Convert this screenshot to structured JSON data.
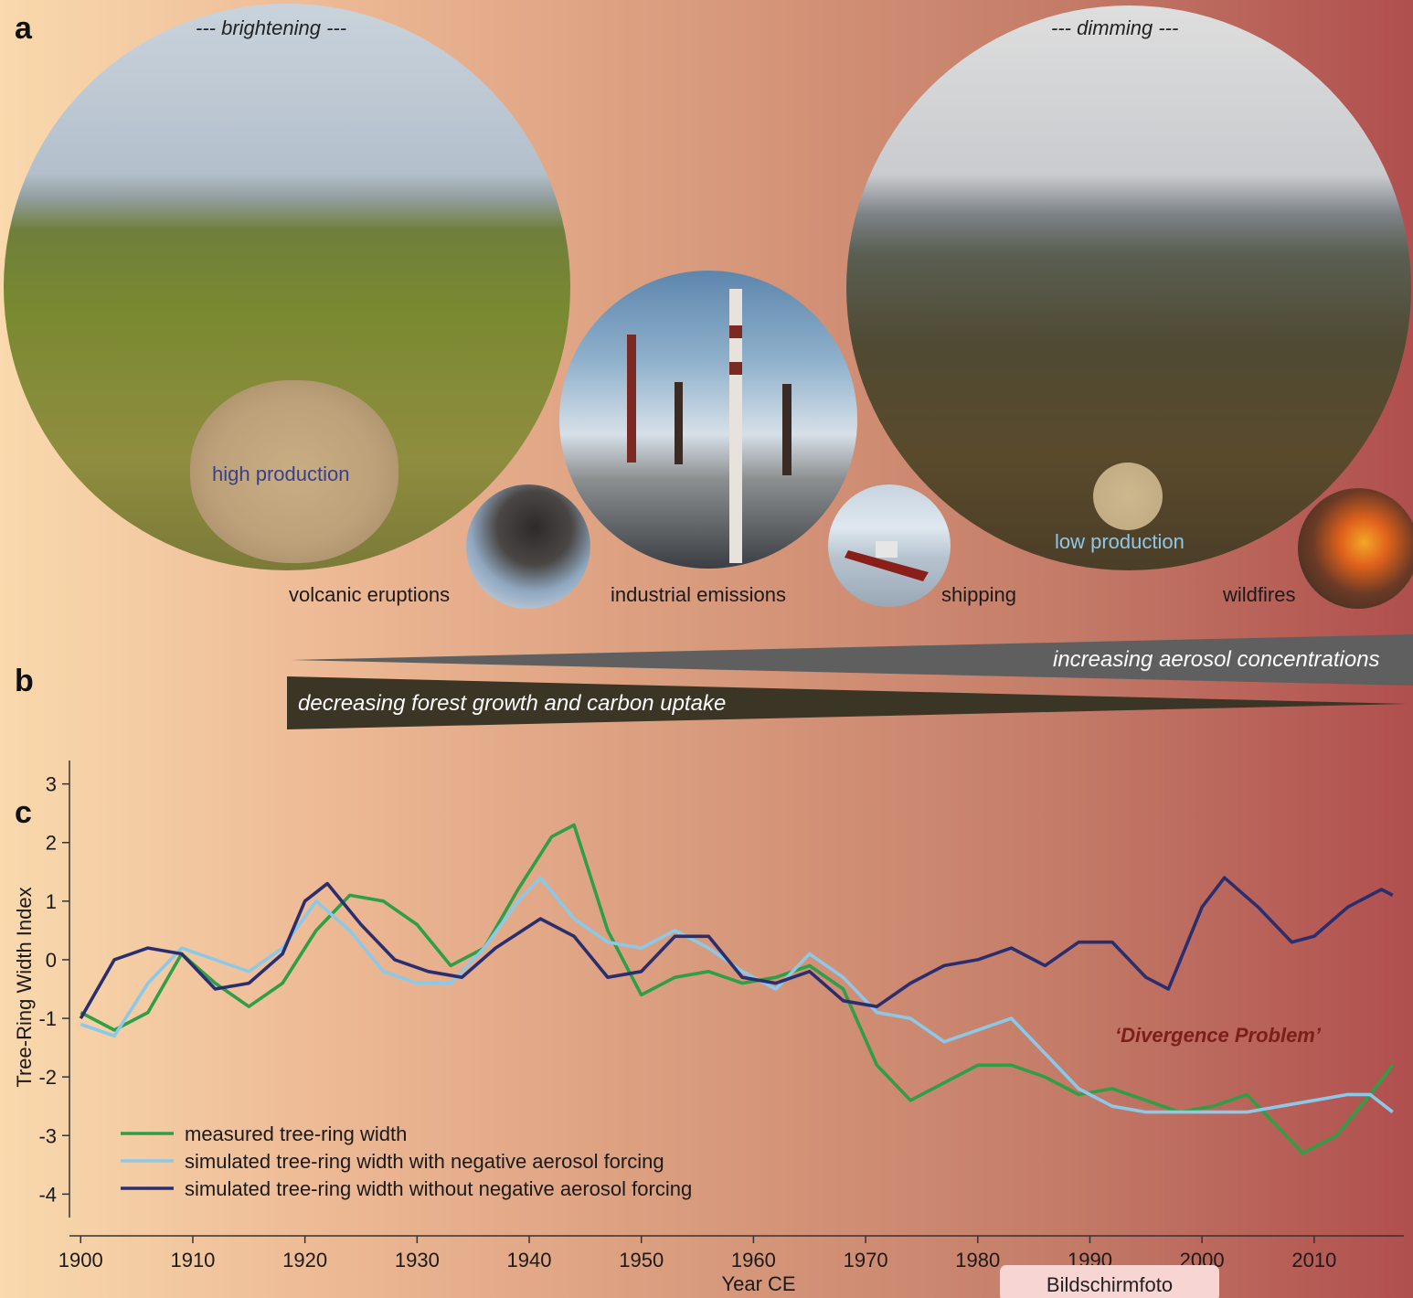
{
  "panel_labels": {
    "a": "a",
    "b": "b",
    "c": "c"
  },
  "panel_a": {
    "left_tag": "--- brightening ---",
    "right_tag": "--- dimming ---",
    "high_production": "high production",
    "low_production": "low production",
    "captions": {
      "volcanic": "volcanic eruptions",
      "industrial": "industrial emissions",
      "shipping": "shipping",
      "wildfires": "wildfires"
    }
  },
  "panel_b": {
    "aerosol": "increasing aerosol concentrations",
    "forest": "decreasing forest growth and carbon uptake"
  },
  "overlay": {
    "screenshot_label": "Bildschirmfoto"
  },
  "colors": {
    "measured": "#2e9e47",
    "with_aerosol": "#8cc9e8",
    "without_aerosol": "#2b2e6e",
    "divergence": "#7a1f1a"
  },
  "chart_data": {
    "type": "line",
    "xlabel": "Year CE",
    "ylabel": "Tree-Ring Width Index",
    "xlim": [
      1899,
      2018
    ],
    "ylim": [
      -4.4,
      3.4
    ],
    "xticks": [
      1900,
      1910,
      1920,
      1930,
      1940,
      1950,
      1960,
      1970,
      1980,
      1990,
      2000,
      2010
    ],
    "yticks": [
      3,
      2,
      1,
      0,
      -1,
      -2,
      -3,
      -4
    ],
    "annotation": "‘Divergence Problem’",
    "legend_position": "bottom-left",
    "series": [
      {
        "name": "measured tree-ring width",
        "x": [
          1900,
          1903,
          1906,
          1909,
          1912,
          1915,
          1918,
          1921,
          1924,
          1927,
          1930,
          1933,
          1936,
          1939,
          1942,
          1944,
          1947,
          1950,
          1953,
          1956,
          1959,
          1962,
          1965,
          1968,
          1971,
          1974,
          1977,
          1980,
          1983,
          1986,
          1989,
          1992,
          1995,
          1998,
          2001,
          2004,
          2007,
          2009,
          2012,
          2015,
          2017
        ],
        "values": [
          -0.9,
          -1.2,
          -0.9,
          0.1,
          -0.4,
          -0.8,
          -0.4,
          0.5,
          1.1,
          1.0,
          0.6,
          -0.1,
          0.2,
          1.2,
          2.1,
          2.3,
          0.5,
          -0.6,
          -0.3,
          -0.2,
          -0.4,
          -0.3,
          -0.1,
          -0.5,
          -1.8,
          -2.4,
          -2.1,
          -1.8,
          -1.8,
          -2.0,
          -2.3,
          -2.2,
          -2.4,
          -2.6,
          -2.5,
          -2.3,
          -2.9,
          -3.3,
          -3.0,
          -2.3,
          -1.8
        ]
      },
      {
        "name": "simulated tree-ring width with negative aerosol forcing",
        "x": [
          1900,
          1903,
          1906,
          1909,
          1912,
          1915,
          1918,
          1921,
          1924,
          1927,
          1930,
          1933,
          1936,
          1939,
          1941,
          1944,
          1947,
          1950,
          1953,
          1956,
          1959,
          1962,
          1965,
          1968,
          1971,
          1974,
          1977,
          1980,
          1983,
          1986,
          1989,
          1992,
          1995,
          1998,
          2001,
          2004,
          2007,
          2010,
          2013,
          2015,
          2017
        ],
        "values": [
          -1.1,
          -1.3,
          -0.4,
          0.2,
          0.0,
          -0.2,
          0.2,
          1.0,
          0.5,
          -0.2,
          -0.4,
          -0.4,
          0.2,
          1.0,
          1.4,
          0.7,
          0.3,
          0.2,
          0.5,
          0.2,
          -0.2,
          -0.5,
          0.1,
          -0.3,
          -0.9,
          -1.0,
          -1.4,
          -1.2,
          -1.0,
          -1.6,
          -2.2,
          -2.5,
          -2.6,
          -2.6,
          -2.6,
          -2.6,
          -2.5,
          -2.4,
          -2.3,
          -2.3,
          -2.6
        ]
      },
      {
        "name": "simulated tree-ring width without negative aerosol forcing",
        "x": [
          1900,
          1903,
          1906,
          1909,
          1912,
          1915,
          1918,
          1920,
          1922,
          1925,
          1928,
          1931,
          1934,
          1937,
          1941,
          1944,
          1947,
          1950,
          1953,
          1956,
          1959,
          1962,
          1965,
          1968,
          1971,
          1974,
          1977,
          1980,
          1983,
          1986,
          1989,
          1992,
          1995,
          1997,
          2000,
          2002,
          2005,
          2008,
          2010,
          2013,
          2016,
          2017
        ],
        "values": [
          -1.0,
          0.0,
          0.2,
          0.1,
          -0.5,
          -0.4,
          0.1,
          1.0,
          1.3,
          0.6,
          0.0,
          -0.2,
          -0.3,
          0.2,
          0.7,
          0.4,
          -0.3,
          -0.2,
          0.4,
          0.4,
          -0.3,
          -0.4,
          -0.2,
          -0.7,
          -0.8,
          -0.4,
          -0.1,
          0.0,
          0.2,
          -0.1,
          0.3,
          0.3,
          -0.3,
          -0.5,
          0.9,
          1.4,
          0.9,
          0.3,
          0.4,
          0.9,
          1.2,
          1.1
        ]
      }
    ]
  }
}
